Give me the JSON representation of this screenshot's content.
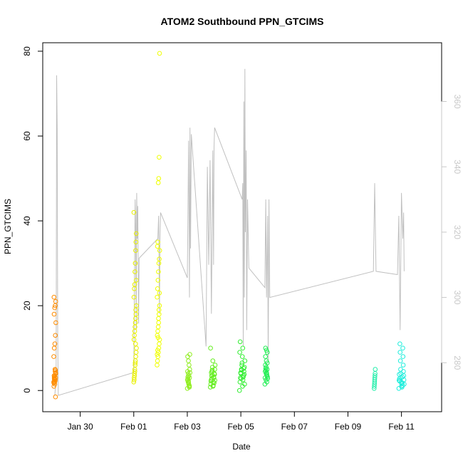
{
  "chart_data": {
    "type": "scatter",
    "title": "ATOM2 Southbound PPN_GTCIMS",
    "xlabel": "Date",
    "ylabel": "PPN_GTCIMS",
    "x_ticks": [
      "Jan 30",
      "Feb 01",
      "Feb 03",
      "Feb 05",
      "Feb 07",
      "Feb 09",
      "Feb 11"
    ],
    "x_tick_days": [
      30,
      32,
      34,
      36,
      38,
      40,
      42
    ],
    "xlim_days": [
      28.6,
      43.5
    ],
    "y_ticks": [
      0,
      20,
      40,
      60,
      80
    ],
    "ylim": [
      -5,
      82
    ],
    "y2_ticks": [
      280,
      300,
      320,
      340,
      360
    ],
    "y2lim": [
      265,
      378
    ],
    "colors": {
      "secondary_line": "#c0c0c0",
      "right_axis": "#c8c8c8"
    },
    "point_clusters": [
      {
        "day": 29.05,
        "spread": 0.04,
        "color": "#ff8c00",
        "values": [
          2,
          3,
          1.5,
          2.5,
          4,
          3.5,
          2,
          4.5,
          3,
          1,
          2.8,
          5,
          -1.5,
          8,
          10,
          11,
          13,
          16,
          18,
          19.5,
          20,
          21,
          22,
          3.2,
          2.2,
          4.2,
          1.8,
          2.6,
          3.6,
          4.8
        ]
      },
      {
        "day": 32.05,
        "spread": 0.05,
        "color": "#e8f000",
        "values": [
          2,
          3,
          4,
          5,
          6,
          7,
          8,
          9,
          10,
          12,
          13,
          14,
          15,
          16,
          17,
          18,
          20,
          22,
          24,
          25,
          28,
          30,
          33,
          35,
          37,
          42,
          2.5,
          3.5,
          4.5,
          6.5,
          11,
          19,
          26
        ]
      },
      {
        "day": 32.92,
        "spread": 0.05,
        "color": "#f0ff00",
        "values": [
          6,
          7,
          8,
          9,
          10,
          11,
          12,
          13,
          14,
          15,
          16,
          18,
          20,
          22,
          24,
          26,
          28,
          30,
          31,
          33,
          34,
          35,
          49,
          50,
          55,
          79.5,
          8.5,
          9.5,
          12.5,
          17,
          19,
          23
        ]
      },
      {
        "day": 34.05,
        "spread": 0.05,
        "color": "#90ee20",
        "values": [
          0.5,
          1,
          1.5,
          2,
          2.5,
          3,
          3.5,
          4,
          4.5,
          5,
          6,
          7,
          8,
          8.5,
          1.2,
          2.2,
          3.2,
          4.2,
          0.8,
          1.8,
          2.8
        ]
      },
      {
        "day": 34.95,
        "spread": 0.09,
        "color": "#66ee22",
        "values": [
          0.8,
          1,
          1.5,
          2,
          2.5,
          3,
          3.5,
          4,
          4.5,
          5,
          5.5,
          6,
          7,
          10,
          1.2,
          2.2,
          3.2,
          4.2,
          1.8,
          2.8,
          3.8,
          4.8,
          2.4,
          3.6
        ]
      },
      {
        "day": 36.05,
        "spread": 0.1,
        "color": "#33ee33",
        "values": [
          0,
          1,
          2,
          2.5,
          3,
          3.5,
          4,
          4.5,
          5,
          5.5,
          6,
          7,
          8,
          9,
          10,
          11.5,
          3.2,
          4.2,
          5.2,
          2.8,
          3.8,
          4.8,
          1.5,
          6.5
        ]
      },
      {
        "day": 36.95,
        "spread": 0.05,
        "color": "#22ee55",
        "values": [
          1.5,
          2,
          2.5,
          3,
          3.5,
          4,
          4.5,
          5,
          5.5,
          6,
          6.5,
          7,
          8,
          9,
          9.5,
          10,
          3.2,
          4.2,
          5.2,
          2.8,
          3.8,
          4.8
        ]
      },
      {
        "day": 41.0,
        "spread": 0.02,
        "color": "#22eeaa",
        "values": [
          0.5,
          1,
          1.5,
          2,
          2.5,
          3,
          3.5,
          4,
          5
        ]
      },
      {
        "day": 42.0,
        "spread": 0.1,
        "color": "#22eedd",
        "values": [
          0.5,
          1,
          1.5,
          2,
          2.5,
          3,
          3.5,
          4,
          4.5,
          5,
          6,
          7,
          8,
          9,
          10,
          11,
          1.2,
          2.2,
          3.2,
          2.8,
          1.8,
          3.8,
          0.8,
          2.4,
          1.6
        ]
      }
    ],
    "secondary_series": {
      "axis": "right",
      "x_days": [
        29.05,
        29.1,
        29.12,
        29.14,
        29.16,
        29.18,
        32.0,
        32.05,
        32.07,
        32.09,
        32.11,
        32.13,
        32.15,
        32.18,
        32.2,
        32.9,
        32.93,
        32.96,
        32.98,
        33.0,
        34.0,
        34.05,
        34.08,
        34.1,
        34.12,
        34.15,
        34.7,
        34.75,
        34.8,
        34.85,
        34.9,
        34.95,
        34.98,
        35.0,
        35.02,
        36.05,
        36.07,
        36.09,
        36.11,
        36.13,
        36.15,
        36.17,
        36.2,
        36.22,
        36.25,
        36.3,
        36.9,
        36.93,
        36.96,
        37.0,
        37.02,
        37.05,
        37.08,
        40.95,
        41.0,
        41.05,
        41.85,
        41.9,
        41.95,
        42.0,
        42.05,
        42.08,
        42.1
      ],
      "y_values": [
        270,
        275,
        368,
        352,
        290,
        270,
        277,
        330,
        322,
        290,
        332,
        318,
        328,
        292,
        312,
        318,
        325,
        295,
        318,
        326,
        306,
        348,
        300,
        352,
        315,
        350,
        285,
        340,
        310,
        342,
        295,
        345,
        310,
        346,
        352,
        330,
        335,
        285,
        360,
        300,
        370,
        320,
        345,
        290,
        330,
        309,
        303,
        330,
        300,
        325,
        280,
        330,
        300,
        308,
        335,
        308,
        307,
        325,
        290,
        332,
        318,
        326,
        308
      ]
    }
  }
}
